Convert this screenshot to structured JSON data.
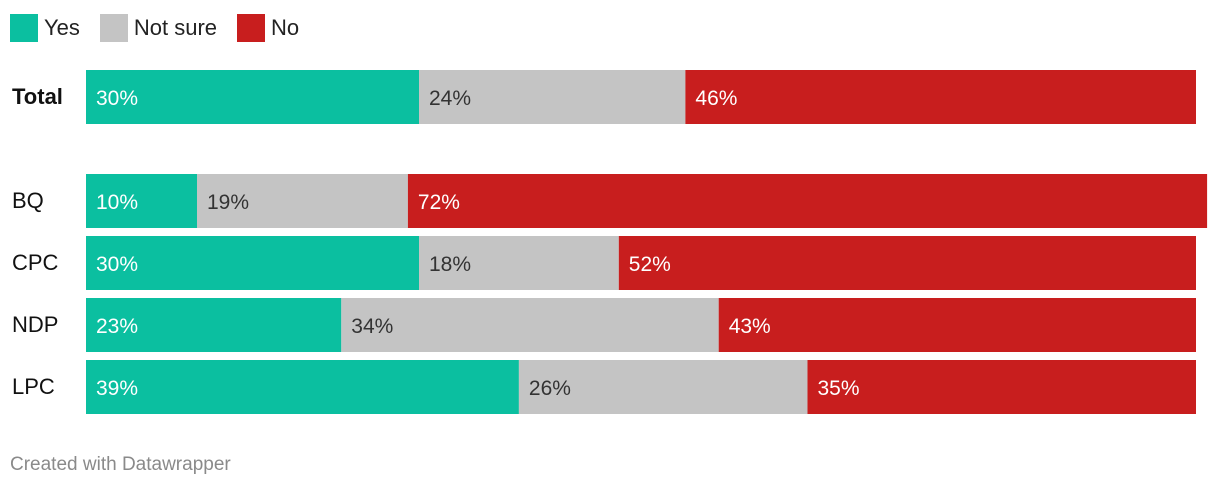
{
  "legend": [
    {
      "label": "Yes",
      "color": "#0bbfa0"
    },
    {
      "label": "Not sure",
      "color": "#c4c4c4"
    },
    {
      "label": "No",
      "color": "#c81e1e"
    }
  ],
  "chart_data": {
    "type": "bar",
    "stacked": true,
    "orientation": "horizontal",
    "categories": [
      "Total",
      "BQ",
      "CPC",
      "NDP",
      "LPC"
    ],
    "series": [
      {
        "name": "Yes",
        "color": "#0bbfa0",
        "values": [
          30,
          10,
          30,
          23,
          39
        ]
      },
      {
        "name": "Not sure",
        "color": "#c4c4c4",
        "values": [
          24,
          19,
          18,
          34,
          26
        ]
      },
      {
        "name": "No",
        "color": "#c81e1e",
        "values": [
          46,
          72,
          52,
          43,
          35
        ]
      }
    ],
    "value_suffix": "%",
    "legend_position": "top-left",
    "grid": false
  },
  "footer": "Created with Datawrapper"
}
